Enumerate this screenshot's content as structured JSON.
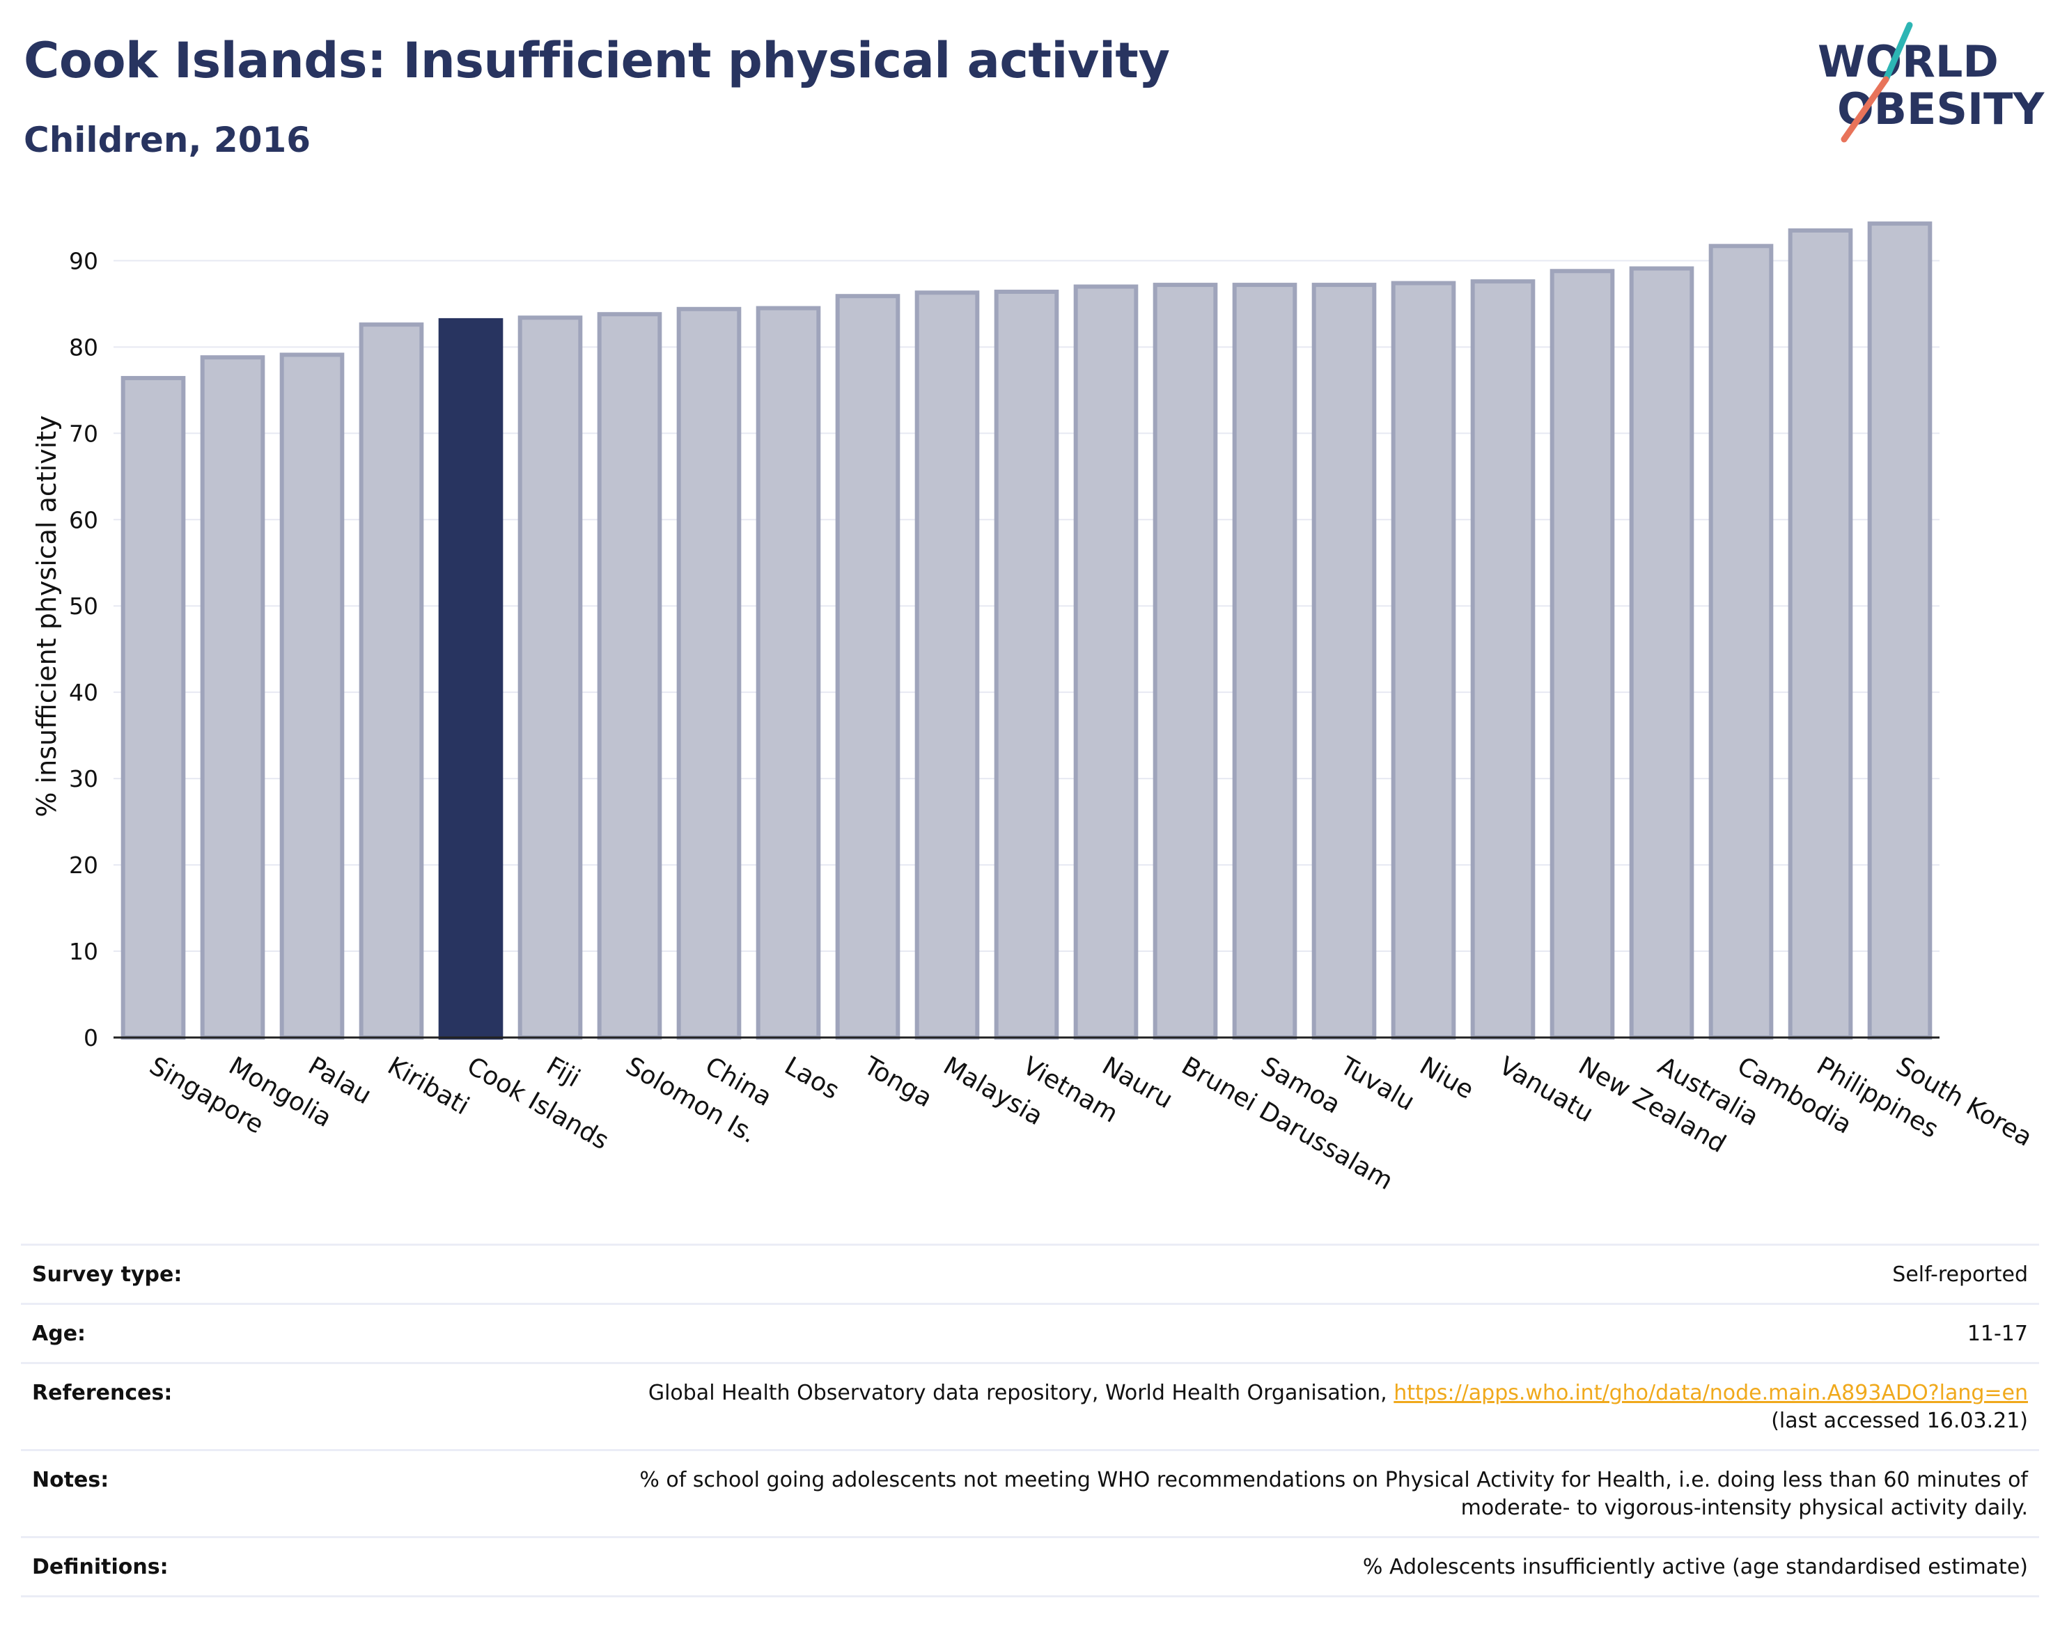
{
  "header": {
    "title": "Cook Islands: Insufficient physical activity",
    "subtitle": "Children, 2016"
  },
  "logo": {
    "line1": "WORLD",
    "line2": "OBESITY",
    "accent_colors": [
      "#2db5b4",
      "#e8735a"
    ]
  },
  "chart_data": {
    "type": "bar",
    "title": "Cook Islands: Insufficient physical activity",
    "subtitle": "Children, 2016",
    "xlabel": "",
    "ylabel": "% insufficient physical activity",
    "ylim": [
      0,
      96
    ],
    "yticks": [
      0,
      10,
      20,
      30,
      40,
      50,
      60,
      70,
      80,
      90
    ],
    "grid": true,
    "highlight": "Cook Islands",
    "colors": {
      "bar": "#bfc2d0",
      "bar_edge": "#9fa4bb",
      "highlight": "#283460",
      "grid": "#e7e9f2",
      "axis": "#222222"
    },
    "categories": [
      "Singapore",
      "Mongolia",
      "Palau",
      "Kiribati",
      "Cook Islands",
      "Fiji",
      "Solomon Is.",
      "China",
      "Laos",
      "Tonga",
      "Malaysia",
      "Vietnam",
      "Nauru",
      "Brunei Darussalam",
      "Samoa",
      "Tuvalu",
      "Niue",
      "Vanuatu",
      "New Zealand",
      "Australia",
      "Cambodia",
      "Philippines",
      "South Korea"
    ],
    "values": [
      76.4,
      78.8,
      79.1,
      82.6,
      83.1,
      83.4,
      83.8,
      84.4,
      84.5,
      85.9,
      86.3,
      86.4,
      87.0,
      87.2,
      87.2,
      87.2,
      87.4,
      87.6,
      88.8,
      89.1,
      91.7,
      93.5,
      94.3
    ]
  },
  "info": {
    "survey_type": {
      "label": "Survey type:",
      "value": "Self-reported"
    },
    "age": {
      "label": "Age:",
      "value": "11-17"
    },
    "references": {
      "label": "References:",
      "text": "Global Health Observatory data repository, World Health Organisation,",
      "link": "https://apps.who.int/gho/data/node.main.A893ADO?lang=en",
      "accessed": "(last accessed 16.03.21)"
    },
    "notes": {
      "label": "Notes:",
      "line1": "% of school going adolescents not meeting WHO recommendations on Physical Activity for Health, i.e. doing less than 60 minutes of",
      "line2": "moderate- to vigorous-intensity physical activity daily."
    },
    "definitions": {
      "label": "Definitions:",
      "value": "% Adolescents insufficiently active (age standardised estimate)"
    }
  }
}
